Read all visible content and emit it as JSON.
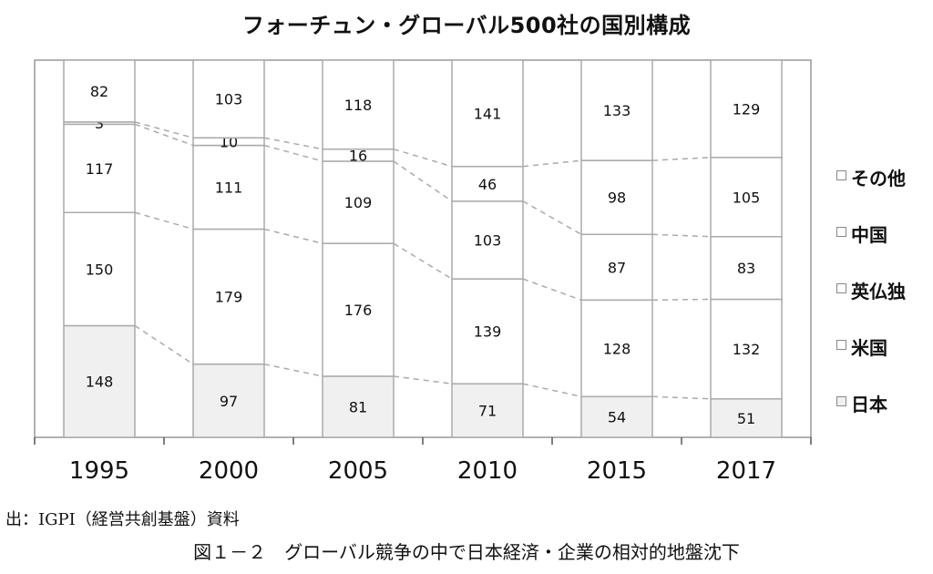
{
  "chart_data": {
    "type": "bar",
    "stacked": true,
    "title": "フォーチュン・グローバル500社の国別構成",
    "categories": [
      "1995",
      "2000",
      "2005",
      "2010",
      "2015",
      "2017"
    ],
    "series": [
      {
        "name": "日本",
        "values": [
          148,
          97,
          81,
          71,
          54,
          51
        ],
        "color": "#f0f0f0"
      },
      {
        "name": "米国",
        "values": [
          150,
          179,
          176,
          139,
          128,
          132
        ],
        "color": "#ffffff"
      },
      {
        "name": "英仏独",
        "values": [
          117,
          111,
          109,
          103,
          87,
          83
        ],
        "color": "#ffffff"
      },
      {
        "name": "中国",
        "values": [
          3,
          10,
          16,
          46,
          98,
          105
        ],
        "color": "#ffffff"
      },
      {
        "name": "その他",
        "values": [
          82,
          103,
          118,
          141,
          133,
          129
        ],
        "color": "#ffffff"
      }
    ],
    "ylim": [
      0,
      500
    ],
    "legend_position": "right",
    "grid": false
  },
  "source": "出：IGPI（経営共創基盤）資料",
  "caption": "図１－２　グローバル競争の中で日本経済・企業の相対的地盤沈下"
}
